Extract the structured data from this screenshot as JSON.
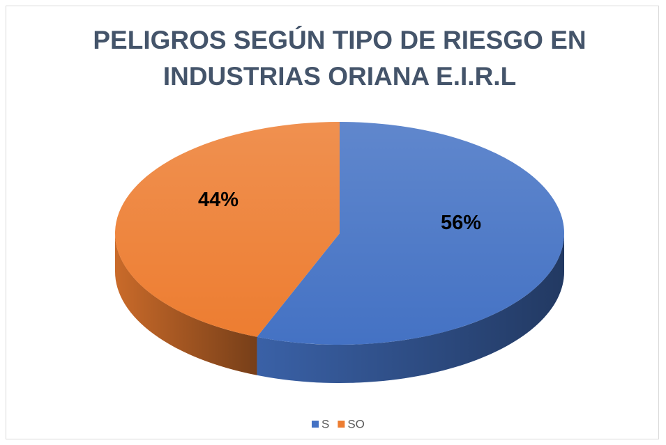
{
  "chart_data": {
    "type": "pie",
    "title": "PELIGROS SEGÚN TIPO DE RIESGO EN INDUSTRIAS ORIANA E.I.R.L",
    "categories": [
      "S",
      "SO"
    ],
    "values": [
      56,
      44
    ],
    "value_labels": [
      "56%",
      "44%"
    ],
    "colors": [
      "#4472c4",
      "#ed7d31"
    ],
    "legend": "bottom"
  }
}
